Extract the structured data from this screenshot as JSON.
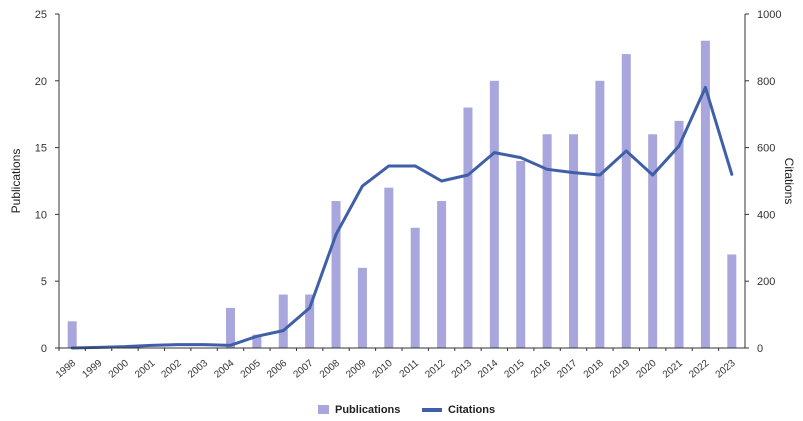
{
  "chart_data": {
    "type": "bar",
    "categories": [
      "1998",
      "1999",
      "2000",
      "2001",
      "2002",
      "2003",
      "2004",
      "2005",
      "2006",
      "2007",
      "2008",
      "2009",
      "2010",
      "2011",
      "2012",
      "2013",
      "2014",
      "2015",
      "2016",
      "2017",
      "2018",
      "2019",
      "2020",
      "2021",
      "2022",
      "2023"
    ],
    "series": [
      {
        "name": "Publications",
        "type": "bar",
        "axis": "left",
        "color": "#a8a6dc",
        "values": [
          2,
          0,
          0,
          0,
          0,
          0,
          3,
          1,
          4,
          4,
          11,
          6,
          12,
          9,
          11,
          18,
          20,
          14,
          16,
          16,
          20,
          22,
          16,
          17,
          23,
          7
        ]
      },
      {
        "name": "Citations",
        "type": "line",
        "axis": "right",
        "color": "#3f5fa8",
        "values": [
          0,
          2,
          4,
          8,
          10,
          10,
          8,
          35,
          52,
          120,
          340,
          485,
          545,
          545,
          500,
          518,
          585,
          570,
          535,
          525,
          518,
          590,
          518,
          605,
          780,
          520
        ]
      }
    ],
    "title": "",
    "xlabel": "",
    "ylabel": "Publications",
    "y2label": "Citations",
    "ylim": [
      0,
      25
    ],
    "y2lim": [
      0,
      1000
    ],
    "yticks": [
      0,
      5,
      10,
      15,
      20,
      25
    ],
    "y2ticks": [
      0,
      200,
      400,
      600,
      800,
      1000
    ],
    "grid": false,
    "legend": {
      "placement": "bottom-center",
      "entries": [
        "Publications",
        "Citations"
      ]
    }
  }
}
